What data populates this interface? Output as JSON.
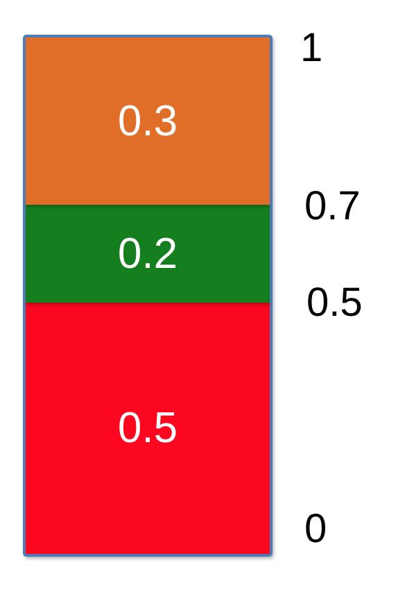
{
  "segments": [
    {
      "label": "0.3",
      "value": 0.3,
      "color": "#e06e28"
    },
    {
      "label": "0.2",
      "value": 0.2,
      "color": "#157f1f"
    },
    {
      "label": "0.5",
      "value": 0.5,
      "color": "#fb0820"
    }
  ],
  "scale": {
    "top": "1",
    "upper_boundary": "0.7",
    "lower_boundary": "0.5",
    "bottom": "0"
  },
  "border_color": "#4f7ab8"
}
